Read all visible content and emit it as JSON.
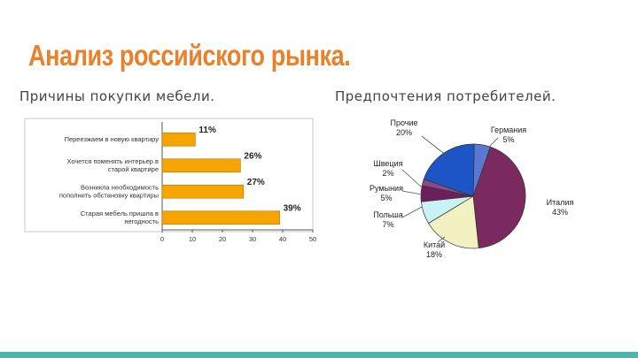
{
  "title": "Анализ российского рынка.",
  "left_heading": "Причины покупки мебели.",
  "right_heading": "Предпочтения потребителей.",
  "colors": {
    "title": "#e8812a",
    "bar_fill": "#f5a400",
    "accent_bar": "#4db6ac",
    "pie": [
      "#5a78d2",
      "#7a2a5e",
      "#f3f0c2",
      "#c9f2f4",
      "#6e1f5a",
      "#8a4a8a",
      "#1c55c6"
    ]
  },
  "chart_data": [
    {
      "type": "bar",
      "orientation": "horizontal",
      "categories": [
        [
          "Переезжаем в новую квартиру"
        ],
        [
          "Хочется поменять интерьер в",
          "старой квартире"
        ],
        [
          "Возникла необходимость",
          "пополнить обстановку квартиры"
        ],
        [
          "Старая мебель пришла в",
          "негодность"
        ]
      ],
      "values": [
        11,
        26,
        27,
        39
      ],
      "data_labels": [
        "11%",
        "26%",
        "27%",
        "39%"
      ],
      "xlim": [
        0,
        50
      ],
      "xticks": [
        0,
        10,
        20,
        30,
        40,
        50
      ],
      "grid": false
    },
    {
      "type": "pie",
      "slices": [
        {
          "label": "Германия",
          "value": 5,
          "value_label": "5%"
        },
        {
          "label": "Италия",
          "value": 43,
          "value_label": "43%"
        },
        {
          "label": "Китай",
          "value": 18,
          "value_label": "18%"
        },
        {
          "label": "Польша",
          "value": 7,
          "value_label": "7%"
        },
        {
          "label": "Румыния",
          "value": 5,
          "value_label": "5%"
        },
        {
          "label": "Швеция",
          "value": 2,
          "value_label": "2%"
        },
        {
          "label": "Прочие",
          "value": 20,
          "value_label": "20%"
        }
      ]
    }
  ]
}
